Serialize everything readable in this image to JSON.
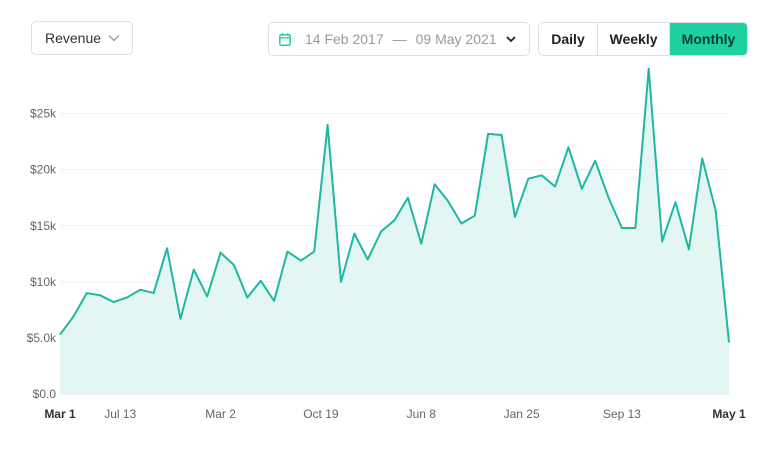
{
  "metric_select": {
    "label": "Revenue"
  },
  "date_range": {
    "start": "14 Feb 2017",
    "separator": "—",
    "end": "09 May 2021"
  },
  "period_toggle": {
    "options": [
      {
        "label": "Daily",
        "active": false
      },
      {
        "label": "Weekly",
        "active": false
      },
      {
        "label": "Monthly",
        "active": true
      }
    ]
  },
  "colors": {
    "accent": "#1ed1a1",
    "line": "#1eb8a2",
    "area_fill": "#e3f6f4"
  },
  "chart_data": {
    "type": "area",
    "y_ticks": [
      "$0.0",
      "$5.0k",
      "$10k",
      "$15k",
      "$20k",
      "$25k"
    ],
    "ylim": [
      0,
      28000
    ],
    "grid": true,
    "x_ticks": [
      {
        "label": "Mar 1",
        "index": 0,
        "bold": true
      },
      {
        "label": "Jul 13",
        "index": 4.5,
        "bold": false
      },
      {
        "label": "Mar 2",
        "index": 12,
        "bold": false
      },
      {
        "label": "Oct 19",
        "index": 19.5,
        "bold": false
      },
      {
        "label": "Jun 8",
        "index": 27,
        "bold": false
      },
      {
        "label": "Jan 25",
        "index": 34.5,
        "bold": false
      },
      {
        "label": "Sep 13",
        "index": 42,
        "bold": false
      },
      {
        "label": "May 1",
        "index": 50,
        "bold": true
      }
    ],
    "series": [
      {
        "values": [
          5300,
          6900,
          9000,
          8800,
          8200,
          8600,
          9300,
          9000,
          13000,
          6700,
          11100,
          8700,
          12600,
          11500,
          8600,
          10100,
          8300,
          12700,
          11900,
          12700,
          24000,
          10000,
          14300,
          12000,
          14500,
          15500,
          17500,
          13400,
          18700,
          17200,
          15200,
          15900,
          23200,
          23100,
          15800,
          19200,
          19500,
          18500,
          22000,
          18300,
          20800,
          17500,
          14800,
          14800,
          29000,
          13600,
          17100,
          12900,
          21000,
          16400,
          4600
        ]
      }
    ]
  }
}
